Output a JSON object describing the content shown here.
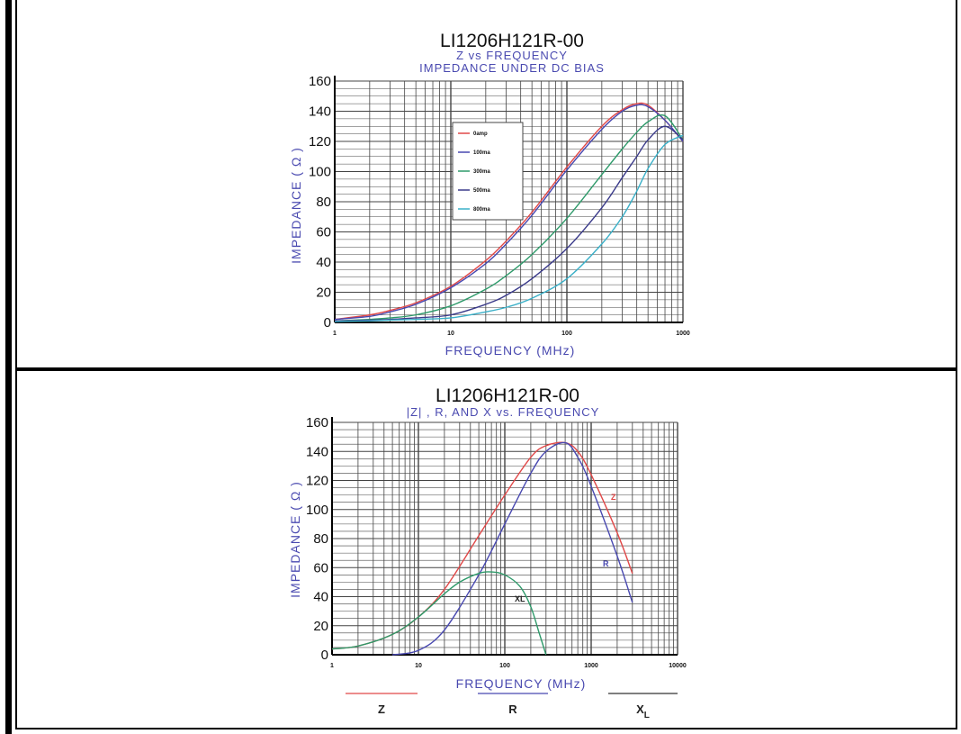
{
  "chart_data": [
    {
      "type": "line",
      "title": "LI1206H121R-00",
      "subtitle1": "Z vs FREQUENCY",
      "subtitle2": "IMPEDANCE UNDER DC BIAS",
      "ylabel": "IMPEDANCE ( Ω )",
      "xlabel": "FREQUENCY (MHz)",
      "xscale": "log",
      "xlim": [
        1,
        1000
      ],
      "ylim": [
        0,
        160
      ],
      "yticks": [
        "0",
        "20",
        "40",
        "60",
        "80",
        "100",
        "120",
        "140",
        "160"
      ],
      "xticks": [
        {
          "v": 1,
          "l": "1"
        },
        {
          "v": 10,
          "l": "10"
        },
        {
          "v": 100,
          "l": "100"
        },
        {
          "v": 1000,
          "l": "1000"
        }
      ],
      "grid": true,
      "legend_position": "upper-left-center",
      "series": [
        {
          "name": "0amp",
          "color": "#e04848",
          "x": [
            1,
            2,
            3,
            5,
            10,
            20,
            30,
            50,
            100,
            200,
            300,
            400,
            500,
            700,
            1000
          ],
          "y": [
            2,
            5,
            8,
            13,
            24,
            41,
            54,
            73,
            103,
            130,
            141,
            145,
            144,
            134,
            120
          ]
        },
        {
          "name": "100ma",
          "color": "#4848b0",
          "x": [
            1,
            2,
            3,
            5,
            10,
            20,
            30,
            50,
            100,
            200,
            300,
            400,
            500,
            700,
            1000
          ],
          "y": [
            2,
            4,
            7,
            12,
            23,
            39,
            52,
            71,
            101,
            128,
            140,
            144,
            143,
            134,
            120
          ]
        },
        {
          "name": "300ma",
          "color": "#2e9a6a",
          "x": [
            1,
            2,
            3,
            5,
            10,
            20,
            30,
            50,
            100,
            200,
            300,
            400,
            500,
            700,
            1000
          ],
          "y": [
            1,
            2,
            3,
            5,
            11,
            22,
            31,
            45,
            69,
            98,
            115,
            126,
            133,
            137,
            121
          ]
        },
        {
          "name": "500ma",
          "color": "#3a3a8a",
          "x": [
            1,
            2,
            3,
            5,
            10,
            20,
            30,
            50,
            100,
            200,
            300,
            400,
            500,
            700,
            1000
          ],
          "y": [
            1,
            1.5,
            2,
            3,
            5,
            12,
            18,
            29,
            49,
            76,
            96,
            110,
            121,
            130,
            121
          ]
        },
        {
          "name": "800ma",
          "color": "#3ab0c8",
          "x": [
            1,
            2,
            3,
            5,
            10,
            20,
            30,
            50,
            100,
            200,
            300,
            400,
            500,
            700,
            1000
          ],
          "y": [
            0.5,
            1,
            1.5,
            2,
            3,
            7,
            10,
            16,
            29,
            52,
            70,
            87,
            102,
            118,
            124
          ]
        }
      ]
    },
    {
      "type": "line",
      "title": "LI1206H121R-00",
      "subtitle1": "|Z| , R, AND X vs. FREQUENCY",
      "ylabel": "IMPEDANCE ( Ω )",
      "xlabel": "FREQUENCY (MHz)",
      "xscale": "log",
      "xlim": [
        1,
        10000
      ],
      "ylim": [
        0,
        160
      ],
      "yticks": [
        "0",
        "20",
        "40",
        "60",
        "80",
        "100",
        "120",
        "140",
        "160"
      ],
      "xticks": [
        {
          "v": 1,
          "l": "1"
        },
        {
          "v": 10,
          "l": "10"
        },
        {
          "v": 100,
          "l": "100"
        },
        {
          "v": 1000,
          "l": "1000"
        },
        {
          "v": 10000,
          "l": "10000"
        }
      ],
      "grid": true,
      "series": [
        {
          "name": "Z",
          "label": "Z",
          "color": "#e04848",
          "x": [
            1,
            2,
            5,
            10,
            20,
            50,
            100,
            200,
            300,
            500,
            700,
            1000,
            2000,
            3000
          ],
          "y": [
            4,
            6,
            14,
            26,
            45,
            82,
            110,
            136,
            144,
            146,
            140,
            124,
            84,
            56
          ]
        },
        {
          "name": "R",
          "label": "R",
          "color": "#4848b0",
          "x": [
            5,
            10,
            20,
            50,
            100,
            200,
            300,
            500,
            700,
            1000,
            2000,
            3000
          ],
          "y": [
            0,
            3,
            17,
            55,
            90,
            125,
            140,
            146,
            136,
            116,
            68,
            36
          ]
        },
        {
          "name": "XL",
          "label": "XL",
          "color": "#2e9a6a",
          "x": [
            1,
            2,
            5,
            10,
            20,
            30,
            50,
            70,
            100,
            150,
            200,
            250,
            300
          ],
          "y": [
            4,
            6,
            14,
            26,
            42,
            50,
            56,
            57,
            55,
            47,
            33,
            15,
            0
          ]
        }
      ],
      "bottom_legend": [
        {
          "label": "Z",
          "color": "#e04848"
        },
        {
          "label": "R",
          "color": "#4848b0"
        },
        {
          "label": "X",
          "sub": "L",
          "color": "#333333"
        }
      ]
    }
  ]
}
